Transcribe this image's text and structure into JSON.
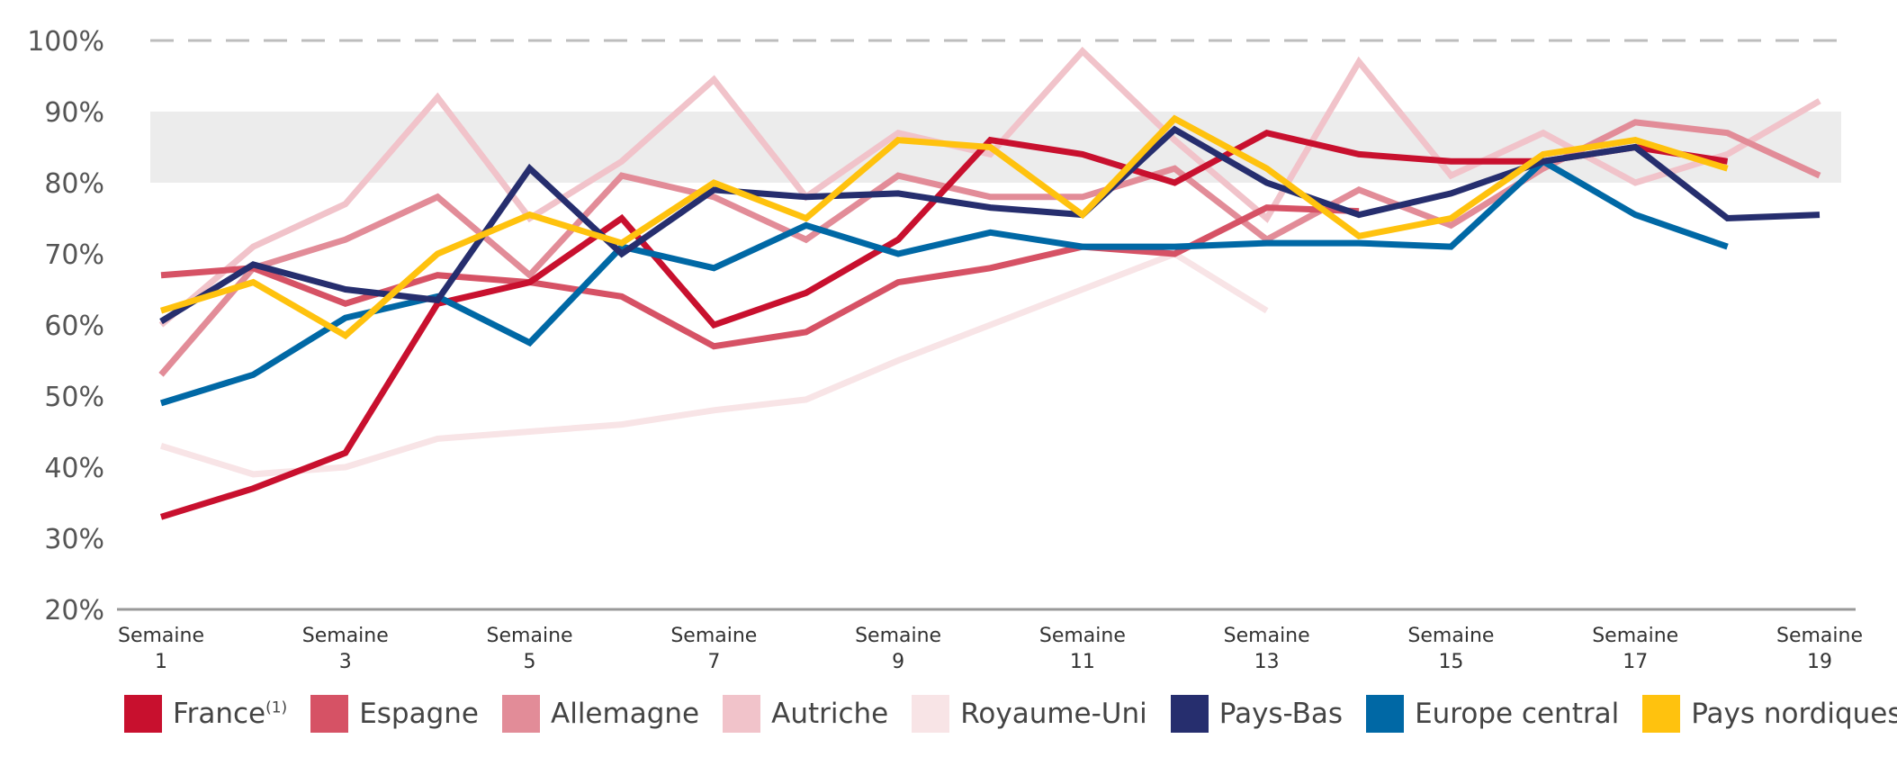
{
  "chart_data": {
    "type": "line",
    "title": "",
    "xlabel": "",
    "ylabel": "",
    "ylim": [
      20,
      100
    ],
    "yticks": [
      "20%",
      "30%",
      "40%",
      "50%",
      "60%",
      "70%",
      "80%",
      "90%",
      "100%"
    ],
    "x": [
      1,
      2,
      3,
      4,
      5,
      6,
      7,
      8,
      9,
      10,
      11,
      12,
      13,
      14,
      15,
      16,
      17,
      18,
      19
    ],
    "xtick_labels": [
      {
        "week": 1,
        "line1": "Semaine",
        "line2": "1"
      },
      {
        "week": 3,
        "line1": "Semaine",
        "line2": "3"
      },
      {
        "week": 5,
        "line1": "Semaine",
        "line2": "5"
      },
      {
        "week": 7,
        "line1": "Semaine",
        "line2": "7"
      },
      {
        "week": 9,
        "line1": "Semaine",
        "line2": "9"
      },
      {
        "week": 11,
        "line1": "Semaine",
        "line2": "11"
      },
      {
        "week": 13,
        "line1": "Semaine",
        "line2": "13"
      },
      {
        "week": 15,
        "line1": "Semaine",
        "line2": "15"
      },
      {
        "week": 17,
        "line1": "Semaine",
        "line2": "17"
      },
      {
        "week": 19,
        "line1": "Semaine",
        "line2": "19"
      }
    ],
    "reference_line": 100,
    "band": [
      80,
      90
    ],
    "band_color": "#ececec",
    "series": [
      {
        "name": "Royaume-Uni",
        "color": "#f8e4e6",
        "values": [
          43,
          39,
          40,
          44,
          45,
          46,
          48,
          49.5,
          55,
          60,
          65,
          70,
          62,
          null,
          null,
          null,
          null,
          null,
          null
        ]
      },
      {
        "name": "Autriche",
        "color": "#f1c3ca",
        "values": [
          60,
          71,
          77,
          92,
          75,
          83,
          94.5,
          78,
          87,
          84,
          98.5,
          86,
          75,
          97,
          81,
          87,
          80,
          84,
          91.5
        ]
      },
      {
        "name": "Allemagne",
        "color": "#e28c98",
        "values": [
          53,
          68,
          72,
          78,
          67,
          81,
          78,
          72,
          81,
          78,
          78,
          82,
          72,
          79,
          74,
          82,
          88.5,
          87,
          81
        ]
      },
      {
        "name": "Espagne",
        "color": "#d65265",
        "values": [
          67,
          68,
          63,
          67,
          66,
          64,
          57,
          59,
          66,
          68,
          71,
          70,
          76.5,
          76,
          null,
          null,
          null,
          null,
          null
        ]
      },
      {
        "name": "France",
        "label_sup": "(1)",
        "color": "#c8102e",
        "values": [
          33,
          37,
          42,
          63,
          66,
          75,
          60,
          64.5,
          72,
          86,
          84,
          80,
          87,
          84,
          83,
          83,
          85,
          83,
          null
        ]
      },
      {
        "name": "Europe central",
        "color": "#0068a5",
        "values": [
          49,
          53,
          61,
          64,
          57.5,
          71,
          68,
          74,
          70,
          73,
          71,
          71,
          71.5,
          71.5,
          71,
          83,
          75.5,
          71,
          null
        ]
      },
      {
        "name": "Pays-Bas",
        "color": "#262e6e",
        "values": [
          60.5,
          68.5,
          65,
          63.5,
          82,
          70,
          79,
          78,
          78.5,
          76.5,
          75.5,
          87.5,
          80,
          75.5,
          78.5,
          83,
          85,
          75,
          75.5
        ]
      },
      {
        "name": "Pays nordiques",
        "color": "#ffc20e",
        "values": [
          62,
          66,
          58.5,
          70,
          75.5,
          71.5,
          80,
          75,
          86,
          85,
          75.5,
          89,
          82,
          72.5,
          75,
          84,
          86,
          82,
          null
        ]
      }
    ],
    "legend": {
      "placement": "bottom",
      "items": [
        {
          "label": "France",
          "sup": "(1)",
          "color": "#c8102e"
        },
        {
          "label": "Espagne",
          "sup": "",
          "color": "#d65265"
        },
        {
          "label": "Allemagne",
          "sup": "",
          "color": "#e28c98"
        },
        {
          "label": "Autriche",
          "sup": "",
          "color": "#f1c3ca"
        },
        {
          "label": "Royaume-Uni",
          "sup": "",
          "color": "#f8e4e6"
        },
        {
          "label": "Pays-Bas",
          "sup": "",
          "color": "#262e6e"
        },
        {
          "label": "Europe central",
          "sup": "",
          "color": "#0068a5"
        },
        {
          "label": "Pays nordiques",
          "sup": "",
          "color": "#ffc20e"
        }
      ]
    }
  }
}
